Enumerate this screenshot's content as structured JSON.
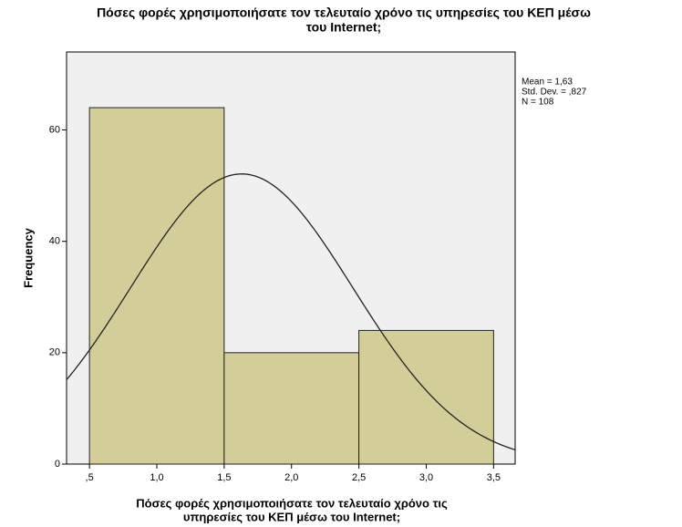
{
  "chart_data": {
    "type": "histogram",
    "title": [
      "Πόσες φορές χρησιμοποιήσατε τον τελευταίο χρόνο τις υπηρεσίες του ΚΕΠ μέσω",
      "του Internet;"
    ],
    "xlabel": [
      "Πόσες φορές χρησιμοποιήσατε τον τελευταίο χρόνο τις",
      "υπηρεσίες του ΚΕΠ μέσω του Internet;"
    ],
    "ylabel": "Frequency",
    "bins": [
      0.5,
      1.5,
      2.5,
      3.5
    ],
    "counts": [
      64,
      20,
      24
    ],
    "color": "#d3ce97",
    "xlim": [
      0.33,
      3.66
    ],
    "ylim": [
      0,
      74
    ],
    "xticks": [
      {
        "value": 0.5,
        "label": ",5"
      },
      {
        "value": 1.0,
        "label": "1,0"
      },
      {
        "value": 1.5,
        "label": "1,5"
      },
      {
        "value": 2.0,
        "label": "2,0"
      },
      {
        "value": 2.5,
        "label": "2,5"
      },
      {
        "value": 3.0,
        "label": "3,0"
      },
      {
        "value": 3.5,
        "label": "3,5"
      }
    ],
    "yticks": [
      0,
      20,
      40,
      60
    ],
    "stats": [
      {
        "value": 1.63,
        "label": "Mean = 1,63"
      },
      {
        "value": 0.827,
        "label": "Std. Dev. = ,827"
      },
      {
        "value": 108,
        "label": "N = 108"
      }
    ],
    "normal_curve": true
  }
}
